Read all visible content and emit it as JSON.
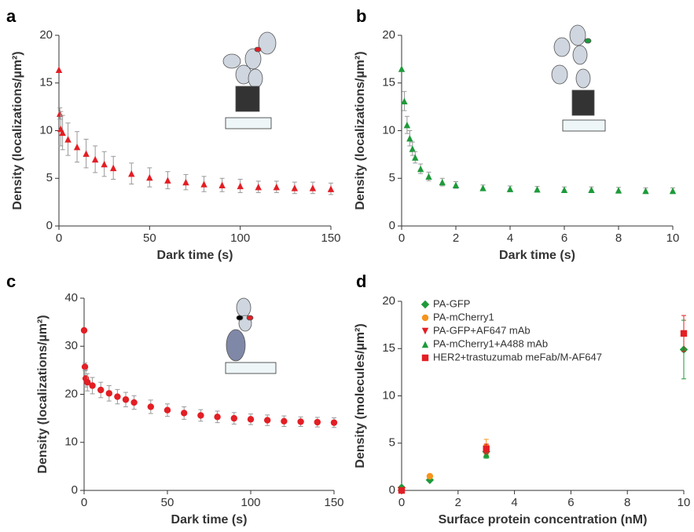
{
  "chart_data": [
    {
      "type": "scatter",
      "label": "a",
      "xlabel": "Dark time (s)",
      "ylabel": "Density (localizations/µm²)",
      "xlim": [
        0,
        150
      ],
      "ylim": [
        0,
        20
      ],
      "xticks": [
        0,
        50,
        100,
        150
      ],
      "yticks": [
        0,
        5,
        10,
        15,
        20
      ],
      "x": [
        0,
        0.5,
        1,
        2,
        5,
        10,
        15,
        20,
        25,
        30,
        40,
        50,
        60,
        70,
        80,
        90,
        100,
        110,
        120,
        130,
        140,
        150
      ],
      "series": [
        {
          "color": "#e31e24",
          "marker": "triangle",
          "error_color": "#999999",
          "values": [
            16.4,
            11.8,
            10.2,
            9.8,
            9.1,
            8.3,
            7.6,
            7.0,
            6.5,
            6.1,
            5.5,
            5.1,
            4.8,
            4.6,
            4.4,
            4.3,
            4.2,
            4.1,
            4.1,
            4.0,
            4.0,
            3.9
          ],
          "errors": [
            0,
            0.6,
            1.8,
            1.8,
            1.7,
            1.6,
            1.5,
            1.4,
            1.3,
            1.2,
            1.1,
            1.0,
            0.9,
            0.8,
            0.8,
            0.7,
            0.7,
            0.6,
            0.6,
            0.6,
            0.6,
            0.6
          ]
        }
      ]
    },
    {
      "type": "scatter",
      "label": "b",
      "xlabel": "Dark time (s)",
      "ylabel": "Density (localizations/µm²)",
      "xlim": [
        0,
        10
      ],
      "ylim": [
        0,
        20
      ],
      "xticks": [
        0,
        2,
        4,
        6,
        8,
        10
      ],
      "yticks": [
        0,
        5,
        10,
        15,
        20
      ],
      "x": [
        0,
        0.1,
        0.2,
        0.3,
        0.4,
        0.5,
        0.7,
        1,
        1.5,
        2,
        3,
        4,
        5,
        6,
        7,
        8,
        9,
        10
      ],
      "series": [
        {
          "color": "#1e9a3a",
          "marker": "triangle",
          "error_color": "#999999",
          "values": [
            16.5,
            13.1,
            10.6,
            9.2,
            8.1,
            7.2,
            6.0,
            5.2,
            4.6,
            4.3,
            4.0,
            3.9,
            3.85,
            3.8,
            3.8,
            3.75,
            3.7,
            3.7
          ],
          "errors": [
            0,
            1.0,
            0.9,
            0.8,
            0.7,
            0.6,
            0.5,
            0.45,
            0.4,
            0.35,
            0.3,
            0.3,
            0.3,
            0.3,
            0.3,
            0.3,
            0.3,
            0.3
          ]
        }
      ]
    },
    {
      "type": "scatter",
      "label": "c",
      "xlabel": "Dark time (s)",
      "ylabel": "Density (localizations/µm²)",
      "xlim": [
        0,
        150
      ],
      "ylim": [
        0,
        40
      ],
      "xticks": [
        0,
        50,
        100,
        150
      ],
      "yticks": [
        0,
        10,
        20,
        30,
        40
      ],
      "x": [
        0,
        0.5,
        1,
        2,
        5,
        10,
        15,
        20,
        25,
        30,
        40,
        50,
        60,
        70,
        80,
        90,
        100,
        110,
        120,
        130,
        140,
        150
      ],
      "series": [
        {
          "color": "#e31e24",
          "marker": "circle",
          "error_color": "#999999",
          "values": [
            33.3,
            25.7,
            23.3,
            22.5,
            21.8,
            20.9,
            20.2,
            19.5,
            18.9,
            18.3,
            17.4,
            16.7,
            16.1,
            15.6,
            15.3,
            15.0,
            14.8,
            14.6,
            14.4,
            14.3,
            14.2,
            14.1
          ],
          "errors": [
            0,
            0.8,
            1.8,
            1.8,
            1.7,
            1.6,
            1.6,
            1.5,
            1.5,
            1.4,
            1.4,
            1.3,
            1.3,
            1.2,
            1.2,
            1.2,
            1.1,
            1.1,
            1.1,
            1.0,
            1.0,
            1.0
          ]
        }
      ]
    },
    {
      "type": "scatter",
      "label": "d",
      "xlabel": "Surface protein concentration (nM)",
      "ylabel": "Density (molecules/µm²)",
      "xlim": [
        0,
        10
      ],
      "ylim": [
        0,
        20
      ],
      "xticks": [
        0,
        2,
        4,
        6,
        8,
        10
      ],
      "yticks": [
        0,
        5,
        10,
        15,
        20
      ],
      "legend": "upper left",
      "x": [
        0,
        1,
        3,
        10
      ],
      "series": [
        {
          "name": "PA-GFP",
          "color": "#1e9a3a",
          "marker": "diamond",
          "values": [
            0.3,
            1.1,
            4.1,
            14.9
          ],
          "errors": [
            0,
            0,
            0.4,
            3.1
          ]
        },
        {
          "name": "PA-mCherry1",
          "color": "#f7941d",
          "marker": "circle",
          "values": [
            0.1,
            1.5,
            4.6,
            null
          ],
          "errors": [
            0,
            0.1,
            0.8,
            null
          ]
        },
        {
          "name": "PA-GFP+AF647 mAb",
          "color": "#e31e24",
          "marker": "triangle-down",
          "values": [
            0.05,
            null,
            4.3,
            null
          ],
          "errors": [
            0,
            null,
            0.3,
            null
          ]
        },
        {
          "name": "PA-mCherry1+A488 mAb",
          "color": "#1e9a3a",
          "marker": "triangle",
          "values": [
            0.4,
            null,
            3.8,
            null
          ],
          "errors": [
            0,
            null,
            0.4,
            null
          ]
        },
        {
          "name": "HER2+trastuzumab meFab/M-AF647",
          "color": "#e31e24",
          "marker": "square",
          "values": [
            0.0,
            null,
            4.4,
            16.6
          ],
          "errors": [
            0,
            null,
            0.5,
            1.9
          ]
        }
      ]
    }
  ]
}
